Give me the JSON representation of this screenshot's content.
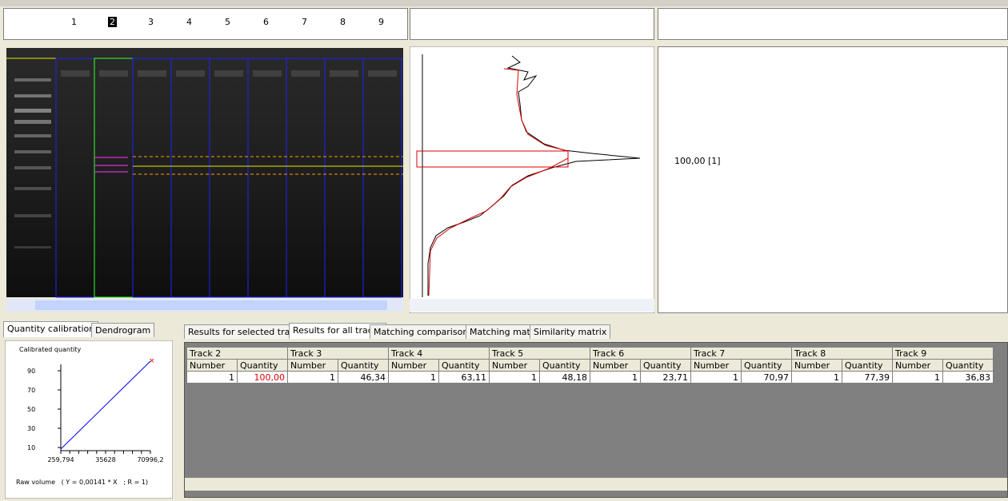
{
  "gel": {
    "lanes": [
      "1",
      "2",
      "3",
      "4",
      "5",
      "6",
      "7",
      "8",
      "9"
    ]
  },
  "band_panel": {
    "label": "100,00 [1]"
  },
  "left_tabs": [
    "Quantity calibration",
    "Dendrogram"
  ],
  "calibration": {
    "y_label": "Calibrated quantity",
    "yticks": [
      "90",
      "70",
      "50",
      "30",
      "10"
    ],
    "xticks": [
      "259,794",
      "35628",
      "70996,2"
    ],
    "x_label": "Raw volume   ( Y = 0,00141 * X   ; R = 1)"
  },
  "result_tabs": [
    "Results for selected track",
    "Results for all tracks",
    "Matching comparisons",
    "Matching matrix",
    "Similarity matrix"
  ],
  "results_table": {
    "tracks": [
      "Track 2",
      "Track 3",
      "Track 4",
      "Track 5",
      "Track 6",
      "Track 7",
      "Track 8",
      "Track 9"
    ],
    "columns": [
      "Number",
      "Quantity"
    ],
    "rows": [
      [
        "1",
        "100,00",
        "1",
        "46,34",
        "1",
        "63,11",
        "1",
        "48,18",
        "1",
        "23,71",
        "1",
        "70,97",
        "1",
        "77,39",
        "1",
        "36,83"
      ]
    ]
  }
}
